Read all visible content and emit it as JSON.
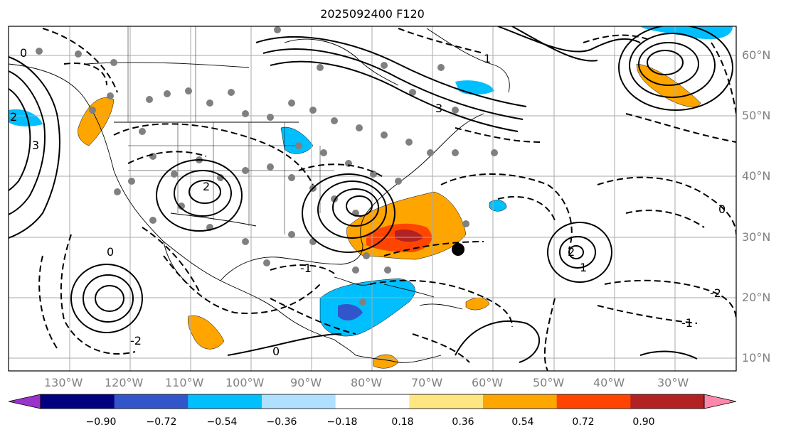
{
  "title": "2025092400 F120",
  "map": {
    "lon_labels": [
      "130°W",
      "120°W",
      "110°W",
      "100°W",
      "90°W",
      "80°W",
      "70°W",
      "60°W",
      "50°W",
      "40°W",
      "30°W"
    ],
    "lat_labels": [
      "60°N",
      "50°N",
      "40°N",
      "30°N",
      "20°N",
      "10°N"
    ],
    "contour_labels": [
      "0",
      "1",
      "2",
      "3",
      "-1",
      "-2",
      "0",
      "2",
      "0",
      "-1",
      "-2",
      "1",
      "0",
      "2",
      "3"
    ]
  },
  "colorbar": {
    "ticks": [
      "−0.90",
      "−0.72",
      "−0.54",
      "−0.36",
      "−0.18",
      "0.18",
      "0.36",
      "0.54",
      "0.72",
      "0.90"
    ],
    "colors": [
      "#9933cc",
      "#000080",
      "#3355cc",
      "#00bfff",
      "#b0e0ff",
      "#ffffff",
      "#ffe680",
      "#ffa500",
      "#ff4400",
      "#b22222",
      "#ff88aa"
    ]
  }
}
